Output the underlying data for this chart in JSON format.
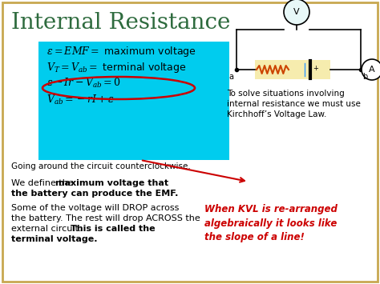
{
  "title": "Internal Resistance",
  "title_color": "#2E6B3E",
  "title_fontsize": 20,
  "bg_color": "#FFFFFF",
  "border_color": "#C8A850",
  "cyan_box_color": "#00CCEE",
  "going_around_text": "Going around the circuit counterclockwise.",
  "kvl_text": "To solve situations involving\ninternal resistance we must use\nKirchhoff’s Voltage Law.",
  "kvl_rearranged": "When KVL is re-arranged\nalgebraically it looks like\nthe slope of a line!",
  "kvl_rearranged_color": "#CC0000",
  "arrow_color": "#CC0000",
  "resistor_color": "#CC4400",
  "battery_color": "#3399FF"
}
